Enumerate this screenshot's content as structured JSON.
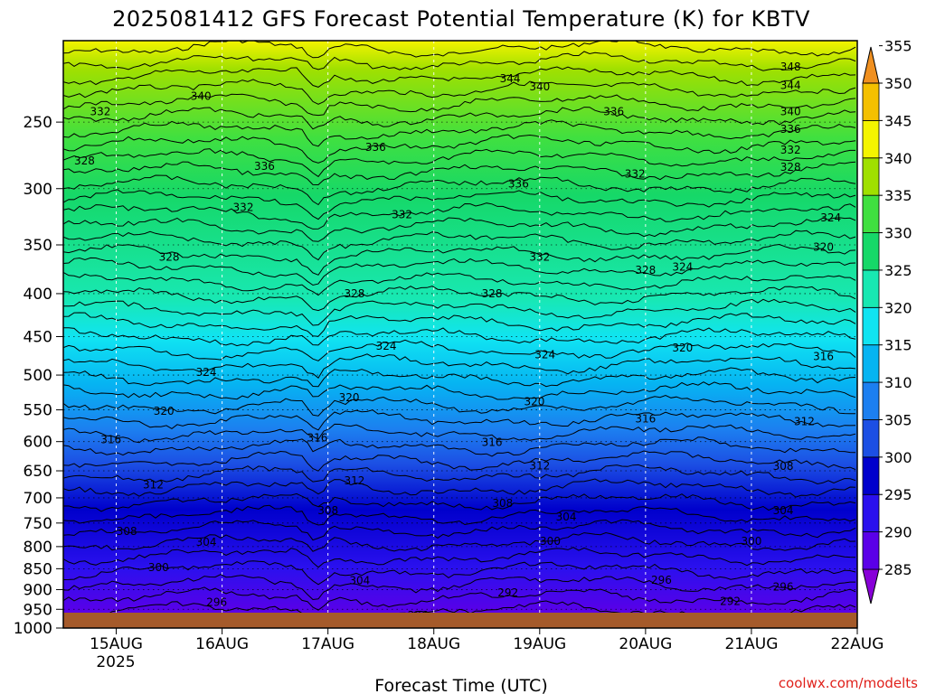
{
  "chart_data": {
    "type": "heatmap",
    "title": "2025081412 GFS Forecast Potential Temperature (K) for KBTV",
    "xlabel": "Forecast Time (UTC)",
    "ylabel": "",
    "credit": "coolwx.com/modelts",
    "x_ticks": [
      "15AUG",
      "16AUG",
      "17AUG",
      "18AUG",
      "19AUG",
      "20AUG",
      "21AUG",
      "22AUG"
    ],
    "x_tick_days": [
      15,
      16,
      17,
      18,
      19,
      20,
      21,
      22
    ],
    "x_year": "2025",
    "x_range_days": [
      14.5,
      22.0
    ],
    "y_ticks": [
      "250",
      "300",
      "350",
      "400",
      "450",
      "500",
      "550",
      "600",
      "650",
      "700",
      "750",
      "800",
      "850",
      "900",
      "950",
      "1000"
    ],
    "y_unit": "hPa",
    "y_range": [
      200,
      1000
    ],
    "y_scale": "log",
    "colorbar": {
      "levels": [
        "285",
        "290",
        "295",
        "300",
        "305",
        "310",
        "315",
        "320",
        "325",
        "330",
        "335",
        "340",
        "345",
        "350",
        "355"
      ],
      "colors": [
        "#8800d8",
        "#5a00e8",
        "#2a10ee",
        "#0000cc",
        "#1c4fe4",
        "#1c7ff0",
        "#06b4f2",
        "#10e4f2",
        "#18e8b2",
        "#16d868",
        "#40e040",
        "#a0e000",
        "#f4f400",
        "#f4c000",
        "#f09020"
      ]
    },
    "contour_labels": [
      {
        "text": "348",
        "day": 21.37,
        "p": 215
      },
      {
        "text": "344",
        "day": 18.72,
        "p": 222
      },
      {
        "text": "344",
        "day": 21.37,
        "p": 226
      },
      {
        "text": "340",
        "day": 15.8,
        "p": 233
      },
      {
        "text": "340",
        "day": 19.0,
        "p": 227
      },
      {
        "text": "340",
        "day": 21.37,
        "p": 243
      },
      {
        "text": "336",
        "day": 19.7,
        "p": 243
      },
      {
        "text": "336",
        "day": 21.37,
        "p": 255
      },
      {
        "text": "336",
        "day": 17.45,
        "p": 268
      },
      {
        "text": "336",
        "day": 16.4,
        "p": 282
      },
      {
        "text": "336",
        "day": 18.8,
        "p": 296
      },
      {
        "text": "332",
        "day": 14.85,
        "p": 243
      },
      {
        "text": "332",
        "day": 21.37,
        "p": 270
      },
      {
        "text": "332",
        "day": 19.9,
        "p": 288
      },
      {
        "text": "332",
        "day": 16.2,
        "p": 316
      },
      {
        "text": "332",
        "day": 17.7,
        "p": 322
      },
      {
        "text": "332",
        "day": 19.0,
        "p": 362
      },
      {
        "text": "328",
        "day": 14.7,
        "p": 278
      },
      {
        "text": "328",
        "day": 21.37,
        "p": 283
      },
      {
        "text": "328",
        "day": 15.5,
        "p": 362
      },
      {
        "text": "328",
        "day": 17.25,
        "p": 400
      },
      {
        "text": "328",
        "day": 18.55,
        "p": 400
      },
      {
        "text": "328",
        "day": 20.0,
        "p": 375
      },
      {
        "text": "324",
        "day": 21.75,
        "p": 325
      },
      {
        "text": "324",
        "day": 20.35,
        "p": 372
      },
      {
        "text": "324",
        "day": 17.55,
        "p": 462
      },
      {
        "text": "324",
        "day": 19.05,
        "p": 473
      },
      {
        "text": "324",
        "day": 15.85,
        "p": 496
      },
      {
        "text": "320",
        "day": 21.68,
        "p": 352
      },
      {
        "text": "320",
        "day": 20.35,
        "p": 464
      },
      {
        "text": "320",
        "day": 17.2,
        "p": 532
      },
      {
        "text": "320",
        "day": 18.95,
        "p": 538
      },
      {
        "text": "320",
        "day": 15.45,
        "p": 552
      },
      {
        "text": "316",
        "day": 21.68,
        "p": 475
      },
      {
        "text": "316",
        "day": 20.0,
        "p": 564
      },
      {
        "text": "316",
        "day": 14.95,
        "p": 597
      },
      {
        "text": "316",
        "day": 16.9,
        "p": 594
      },
      {
        "text": "316",
        "day": 18.55,
        "p": 601
      },
      {
        "text": "312",
        "day": 21.5,
        "p": 568
      },
      {
        "text": "312",
        "day": 19.0,
        "p": 641
      },
      {
        "text": "312",
        "day": 17.25,
        "p": 668
      },
      {
        "text": "312",
        "day": 15.35,
        "p": 675
      },
      {
        "text": "308",
        "day": 21.3,
        "p": 642
      },
      {
        "text": "308",
        "day": 18.65,
        "p": 711
      },
      {
        "text": "308",
        "day": 17.0,
        "p": 725
      },
      {
        "text": "308",
        "day": 15.1,
        "p": 767
      },
      {
        "text": "304",
        "day": 21.3,
        "p": 725
      },
      {
        "text": "304",
        "day": 19.25,
        "p": 737
      },
      {
        "text": "304",
        "day": 15.85,
        "p": 790
      },
      {
        "text": "304",
        "day": 17.3,
        "p": 878
      },
      {
        "text": "304",
        "day": 16.95,
        "p": 991
      },
      {
        "text": "300",
        "day": 21.0,
        "p": 788
      },
      {
        "text": "300",
        "day": 19.1,
        "p": 788
      },
      {
        "text": "300",
        "day": 15.4,
        "p": 847
      },
      {
        "text": "296",
        "day": 20.15,
        "p": 877
      },
      {
        "text": "296",
        "day": 21.3,
        "p": 893
      },
      {
        "text": "296",
        "day": 15.95,
        "p": 932
      },
      {
        "text": "296",
        "day": 17.85,
        "p": 966
      },
      {
        "text": "292",
        "day": 18.7,
        "p": 908
      },
      {
        "text": "292",
        "day": 20.8,
        "p": 930
      }
    ],
    "legend": "colorbar-right",
    "grid": true
  }
}
